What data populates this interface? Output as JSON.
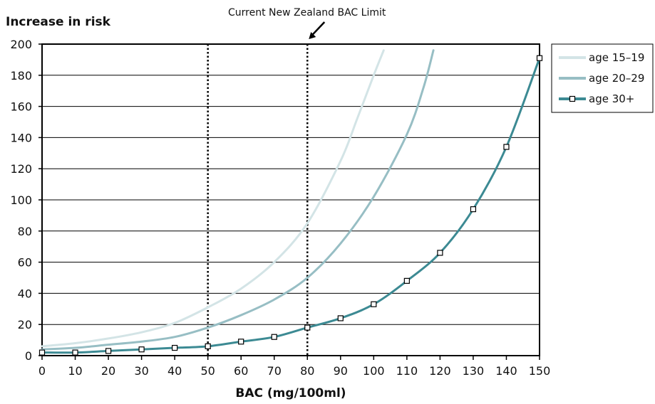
{
  "chart_data": {
    "type": "line",
    "ylabel": "Increase in risk",
    "xlabel": "BAC (mg/100ml)",
    "annotation": "Current New Zealand BAC Limit",
    "xlim": [
      0,
      150
    ],
    "ylim": [
      0,
      200
    ],
    "xticks": [
      "0",
      "10",
      "20",
      "30",
      "40",
      "50",
      "60",
      "70",
      "80",
      "90",
      "100",
      "110",
      "120",
      "130",
      "140",
      "150"
    ],
    "yticks": [
      "0",
      "20",
      "40",
      "60",
      "80",
      "100",
      "120",
      "140",
      "160",
      "180",
      "200"
    ],
    "grid": "horizontal",
    "legend_position": "right",
    "reference_lines_x": [
      50,
      80
    ],
    "series": [
      {
        "name": "age 15–19",
        "color": "#d3e4e6",
        "markers": false,
        "x": [
          0,
          10,
          20,
          30,
          40,
          50,
          60,
          70,
          80,
          90,
          95,
          100,
          103
        ],
        "y": [
          6,
          8,
          11,
          15,
          21,
          31,
          43,
          60,
          85,
          125,
          152,
          180,
          196
        ]
      },
      {
        "name": "age 20–29",
        "color": "#97bec4",
        "markers": false,
        "x": [
          0,
          10,
          20,
          30,
          40,
          50,
          60,
          70,
          80,
          90,
          100,
          110,
          115,
          118
        ],
        "y": [
          4,
          5,
          7,
          9,
          12,
          18,
          26,
          36,
          50,
          72,
          102,
          142,
          172,
          196
        ]
      },
      {
        "name": "age 30+",
        "color": "#3c8a93",
        "markers": true,
        "x": [
          0,
          10,
          20,
          30,
          40,
          50,
          60,
          70,
          80,
          90,
          100,
          110,
          120,
          130,
          140,
          150
        ],
        "y": [
          2,
          2,
          3,
          4,
          5,
          6,
          9,
          12,
          18,
          24,
          33,
          48,
          66,
          94,
          134,
          191
        ]
      }
    ]
  }
}
